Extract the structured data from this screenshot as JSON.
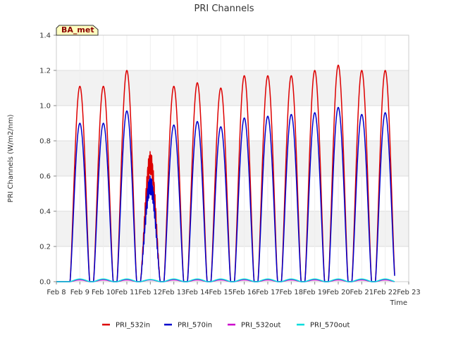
{
  "chart_data": {
    "type": "line",
    "title": "PRI Channels",
    "xlabel": "Time",
    "ylabel": "PRI Channels (W/m2/nm)",
    "badge": "BA_met",
    "ylim": [
      0,
      1.4
    ],
    "yticks": [
      0.0,
      0.2,
      0.4,
      0.6,
      0.8,
      1.0,
      1.2,
      1.4
    ],
    "ytick_labels": [
      "0.0",
      "0.2",
      "0.4",
      "0.6",
      "0.8",
      "1.0",
      "1.2",
      "1.4"
    ],
    "xlim": [
      8,
      23
    ],
    "xticks": [
      8,
      9,
      10,
      11,
      12,
      13,
      14,
      15,
      16,
      17,
      18,
      19,
      20,
      21,
      22,
      23
    ],
    "xtick_labels": [
      "Feb 8",
      "Feb 9",
      "Feb 10",
      "Feb 11",
      "Feb 12",
      "Feb 13",
      "Feb 14",
      "Feb 15",
      "Feb 16",
      "Feb 17",
      "Feb 18",
      "Feb 19",
      "Feb 20",
      "Feb 21",
      "Feb 22",
      "Feb 23"
    ],
    "grid": true,
    "series": [
      {
        "name": "PRI_532in",
        "color": "#dd0000",
        "peaks": [
          1.11,
          1.11,
          1.2,
          0.74,
          1.11,
          1.13,
          1.1,
          1.17,
          1.17,
          1.17,
          1.2,
          1.23,
          1.2,
          1.2
        ]
      },
      {
        "name": "PRI_570in",
        "color": "#0000cc",
        "peaks": [
          0.9,
          0.9,
          0.97,
          0.6,
          0.89,
          0.91,
          0.88,
          0.93,
          0.94,
          0.95,
          0.96,
          0.99,
          0.95,
          0.96
        ]
      },
      {
        "name": "PRI_532out",
        "color": "#cc00cc",
        "peaks": [
          0.01,
          0.01,
          0.01,
          0.01,
          0.01,
          0.01,
          0.01,
          0.01,
          0.01,
          0.01,
          0.01,
          0.01,
          0.01,
          0.01
        ]
      },
      {
        "name": "PRI_570out",
        "color": "#00dddd",
        "peaks": [
          0.015,
          0.015,
          0.015,
          0.012,
          0.015,
          0.015,
          0.015,
          0.015,
          0.015,
          0.015,
          0.015,
          0.015,
          0.015,
          0.015
        ]
      }
    ],
    "peak_days": [
      9,
      10,
      11,
      12,
      13,
      14,
      15,
      16,
      17,
      18,
      19,
      20,
      21,
      22
    ],
    "legend_position": "bottom"
  }
}
